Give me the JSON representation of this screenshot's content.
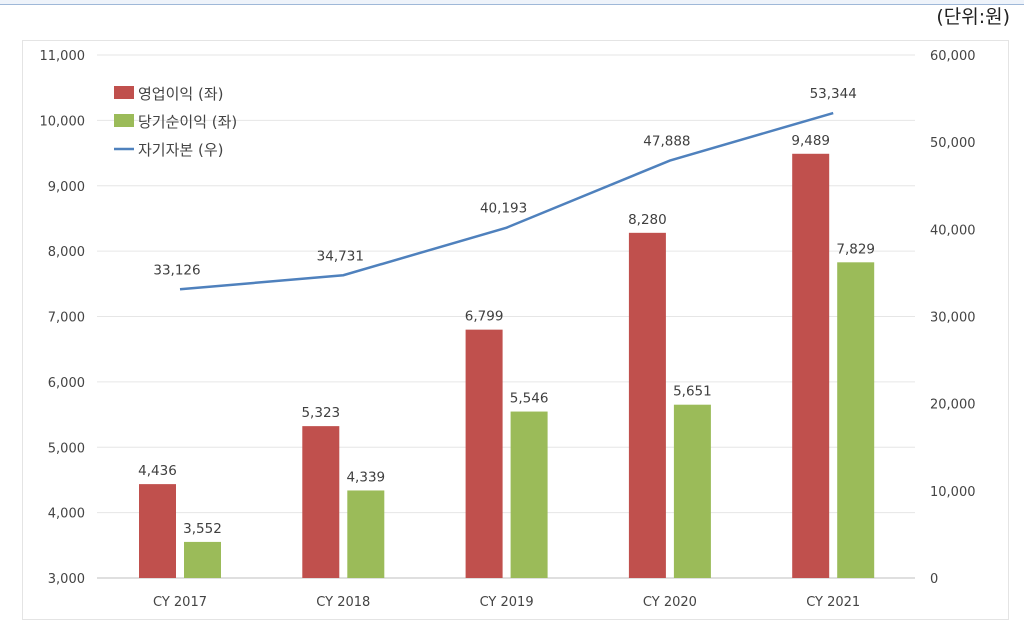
{
  "unit_label": "(단위:원)",
  "chart_data": {
    "type": "bar+line",
    "categories": [
      "CY 2017",
      "CY 2018",
      "CY 2019",
      "CY 2020",
      "CY 2021"
    ],
    "series": [
      {
        "name": "영업이익 (좌)",
        "type": "bar",
        "axis": "left",
        "color": "#c0504d",
        "values": [
          4436,
          5323,
          6799,
          8280,
          9489
        ],
        "labels": [
          "4,436",
          "5,323",
          "6,799",
          "8,280",
          "9,489"
        ]
      },
      {
        "name": "당기순이익 (좌)",
        "type": "bar",
        "axis": "left",
        "color": "#9bbb59",
        "values": [
          3552,
          4339,
          5546,
          5651,
          7829
        ],
        "labels": [
          "3,552",
          "4,339",
          "5,546",
          "5,651",
          "7,829"
        ]
      },
      {
        "name": "자기자본 (우)",
        "type": "line",
        "axis": "right",
        "color": "#4f81bd",
        "values": [
          33126,
          34731,
          40193,
          47888,
          53344
        ],
        "labels": [
          "33,126",
          "34,731",
          "40,193",
          "47,888",
          "53,344"
        ]
      }
    ],
    "ylim_left": [
      3000,
      11000
    ],
    "ylim_right": [
      0,
      60000
    ],
    "yticks_left": [
      "3,000",
      "4,000",
      "5,000",
      "6,000",
      "7,000",
      "8,000",
      "9,000",
      "10,000",
      "11,000"
    ],
    "yticks_right": [
      "0",
      "10,000",
      "20,000",
      "30,000",
      "40,000",
      "50,000",
      "60,000"
    ],
    "grid": true,
    "legend": "top-left"
  }
}
